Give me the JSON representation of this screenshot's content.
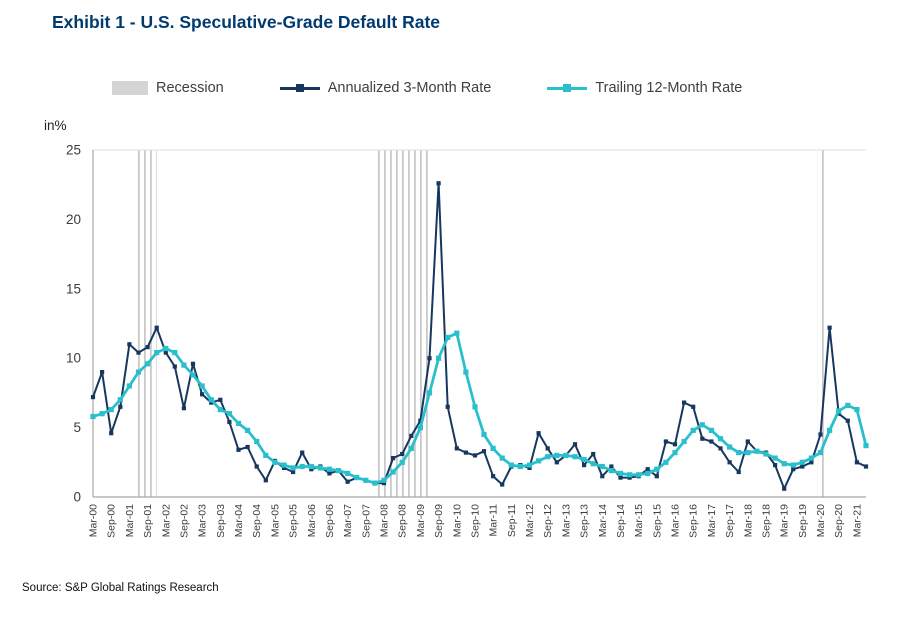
{
  "page": {
    "title": "Exhibit 1 - U.S. Speculative-Grade Default Rate",
    "y_axis_unit": "in%",
    "source": "Source: S&P Global Ratings Research"
  },
  "colors": {
    "title": "#003a70",
    "annualized_3m": "#17375e",
    "trailing_12m": "#2abfcc",
    "recession": "#c9c9c9",
    "axis": "#a6a6a6",
    "tick_text": "#3c3c3c"
  },
  "legend": {
    "items": [
      {
        "label": "Recession",
        "swatch": "band",
        "color": "#d4d4d4"
      },
      {
        "label": "Annualized 3-Month Rate",
        "swatch": "line-marker",
        "color": "#17375e"
      },
      {
        "label": "Trailing 12-Month Rate",
        "swatch": "line-marker",
        "color": "#2abfcc"
      }
    ]
  },
  "chart_data": {
    "type": "line",
    "title": "Exhibit 1 - U.S. Speculative-Grade Default Rate",
    "xlabel": "",
    "ylabel": "in%",
    "ylim": [
      0,
      25
    ],
    "yticks": [
      0,
      5,
      10,
      15,
      20,
      25
    ],
    "x_tick_every": 2,
    "grid": false,
    "legend_position": "top",
    "categories": [
      "Mar-00",
      "Jun-00",
      "Sep-00",
      "Dec-00",
      "Mar-01",
      "Jun-01",
      "Sep-01",
      "Dec-01",
      "Mar-02",
      "Jun-02",
      "Sep-02",
      "Dec-02",
      "Mar-03",
      "Jun-03",
      "Sep-03",
      "Dec-03",
      "Mar-04",
      "Jun-04",
      "Sep-04",
      "Dec-04",
      "Mar-05",
      "Jun-05",
      "Sep-05",
      "Dec-05",
      "Mar-06",
      "Jun-06",
      "Sep-06",
      "Dec-06",
      "Mar-07",
      "Jun-07",
      "Sep-07",
      "Dec-07",
      "Mar-08",
      "Jun-08",
      "Sep-08",
      "Dec-08",
      "Mar-09",
      "Jun-09",
      "Sep-09",
      "Dec-09",
      "Mar-10",
      "Jun-10",
      "Sep-10",
      "Dec-10",
      "Mar-11",
      "Jun-11",
      "Sep-11",
      "Dec-11",
      "Mar-12",
      "Jun-12",
      "Sep-12",
      "Dec-12",
      "Mar-13",
      "Jun-13",
      "Sep-13",
      "Dec-13",
      "Mar-14",
      "Jun-14",
      "Sep-14",
      "Dec-14",
      "Mar-15",
      "Jun-15",
      "Sep-15",
      "Dec-15",
      "Mar-16",
      "Jun-16",
      "Sep-16",
      "Dec-16",
      "Mar-17",
      "Jun-17",
      "Sep-17",
      "Dec-17",
      "Mar-18",
      "Jun-18",
      "Sep-18",
      "Dec-18",
      "Mar-19",
      "Jun-19",
      "Sep-19",
      "Dec-19",
      "Mar-20",
      "Jun-20",
      "Sep-20",
      "Dec-20",
      "Mar-21",
      "Jun-21"
    ],
    "series": [
      {
        "name": "Annualized 3-Month Rate",
        "color": "#17375e",
        "values": [
          7.2,
          9.0,
          4.6,
          6.5,
          11.0,
          10.4,
          10.8,
          12.2,
          10.4,
          9.4,
          6.4,
          9.6,
          7.4,
          6.8,
          7.0,
          5.4,
          3.4,
          3.6,
          2.2,
          1.2,
          2.6,
          2.1,
          1.8,
          3.2,
          2.0,
          2.2,
          1.7,
          1.9,
          1.1,
          1.4,
          1.2,
          1.0,
          1.0,
          2.8,
          3.1,
          4.4,
          5.5,
          10.0,
          22.6,
          6.5,
          3.5,
          3.2,
          3.0,
          3.3,
          1.5,
          0.9,
          2.2,
          2.3,
          2.1,
          4.6,
          3.5,
          2.5,
          3.0,
          3.8,
          2.3,
          3.1,
          1.5,
          2.2,
          1.4,
          1.4,
          1.5,
          2.0,
          1.5,
          4.0,
          3.8,
          6.8,
          6.5,
          4.2,
          4.0,
          3.5,
          2.5,
          1.8,
          4.0,
          3.3,
          3.2,
          2.3,
          0.6,
          2.0,
          2.2,
          2.5,
          4.5,
          12.2,
          6.0,
          5.5,
          2.5,
          2.2
        ]
      },
      {
        "name": "Trailing 12-Month Rate",
        "color": "#2abfcc",
        "values": [
          5.8,
          6.0,
          6.3,
          7.0,
          8.0,
          9.0,
          9.6,
          10.4,
          10.7,
          10.4,
          9.5,
          8.8,
          8.0,
          7.0,
          6.3,
          6.0,
          5.3,
          4.8,
          4.0,
          3.0,
          2.5,
          2.3,
          2.1,
          2.2,
          2.2,
          2.1,
          2.0,
          1.9,
          1.7,
          1.4,
          1.2,
          1.0,
          1.2,
          1.8,
          2.5,
          3.5,
          5.0,
          7.5,
          10.0,
          11.5,
          11.8,
          9.0,
          6.5,
          4.5,
          3.5,
          2.8,
          2.3,
          2.2,
          2.3,
          2.6,
          2.9,
          3.0,
          3.0,
          2.9,
          2.7,
          2.4,
          2.2,
          1.9,
          1.7,
          1.6,
          1.6,
          1.7,
          2.0,
          2.5,
          3.2,
          4.0,
          4.8,
          5.2,
          4.8,
          4.2,
          3.6,
          3.2,
          3.2,
          3.3,
          3.1,
          2.8,
          2.4,
          2.3,
          2.5,
          2.8,
          3.2,
          4.8,
          6.2,
          6.6,
          6.3,
          3.7
        ]
      }
    ],
    "recession_bands": [
      {
        "start_index": 4.5,
        "end_index": 7.0
      },
      {
        "start_index": 31.0,
        "end_index": 37.0
      },
      {
        "start_index": 79.7,
        "end_index": 80.4
      }
    ]
  }
}
